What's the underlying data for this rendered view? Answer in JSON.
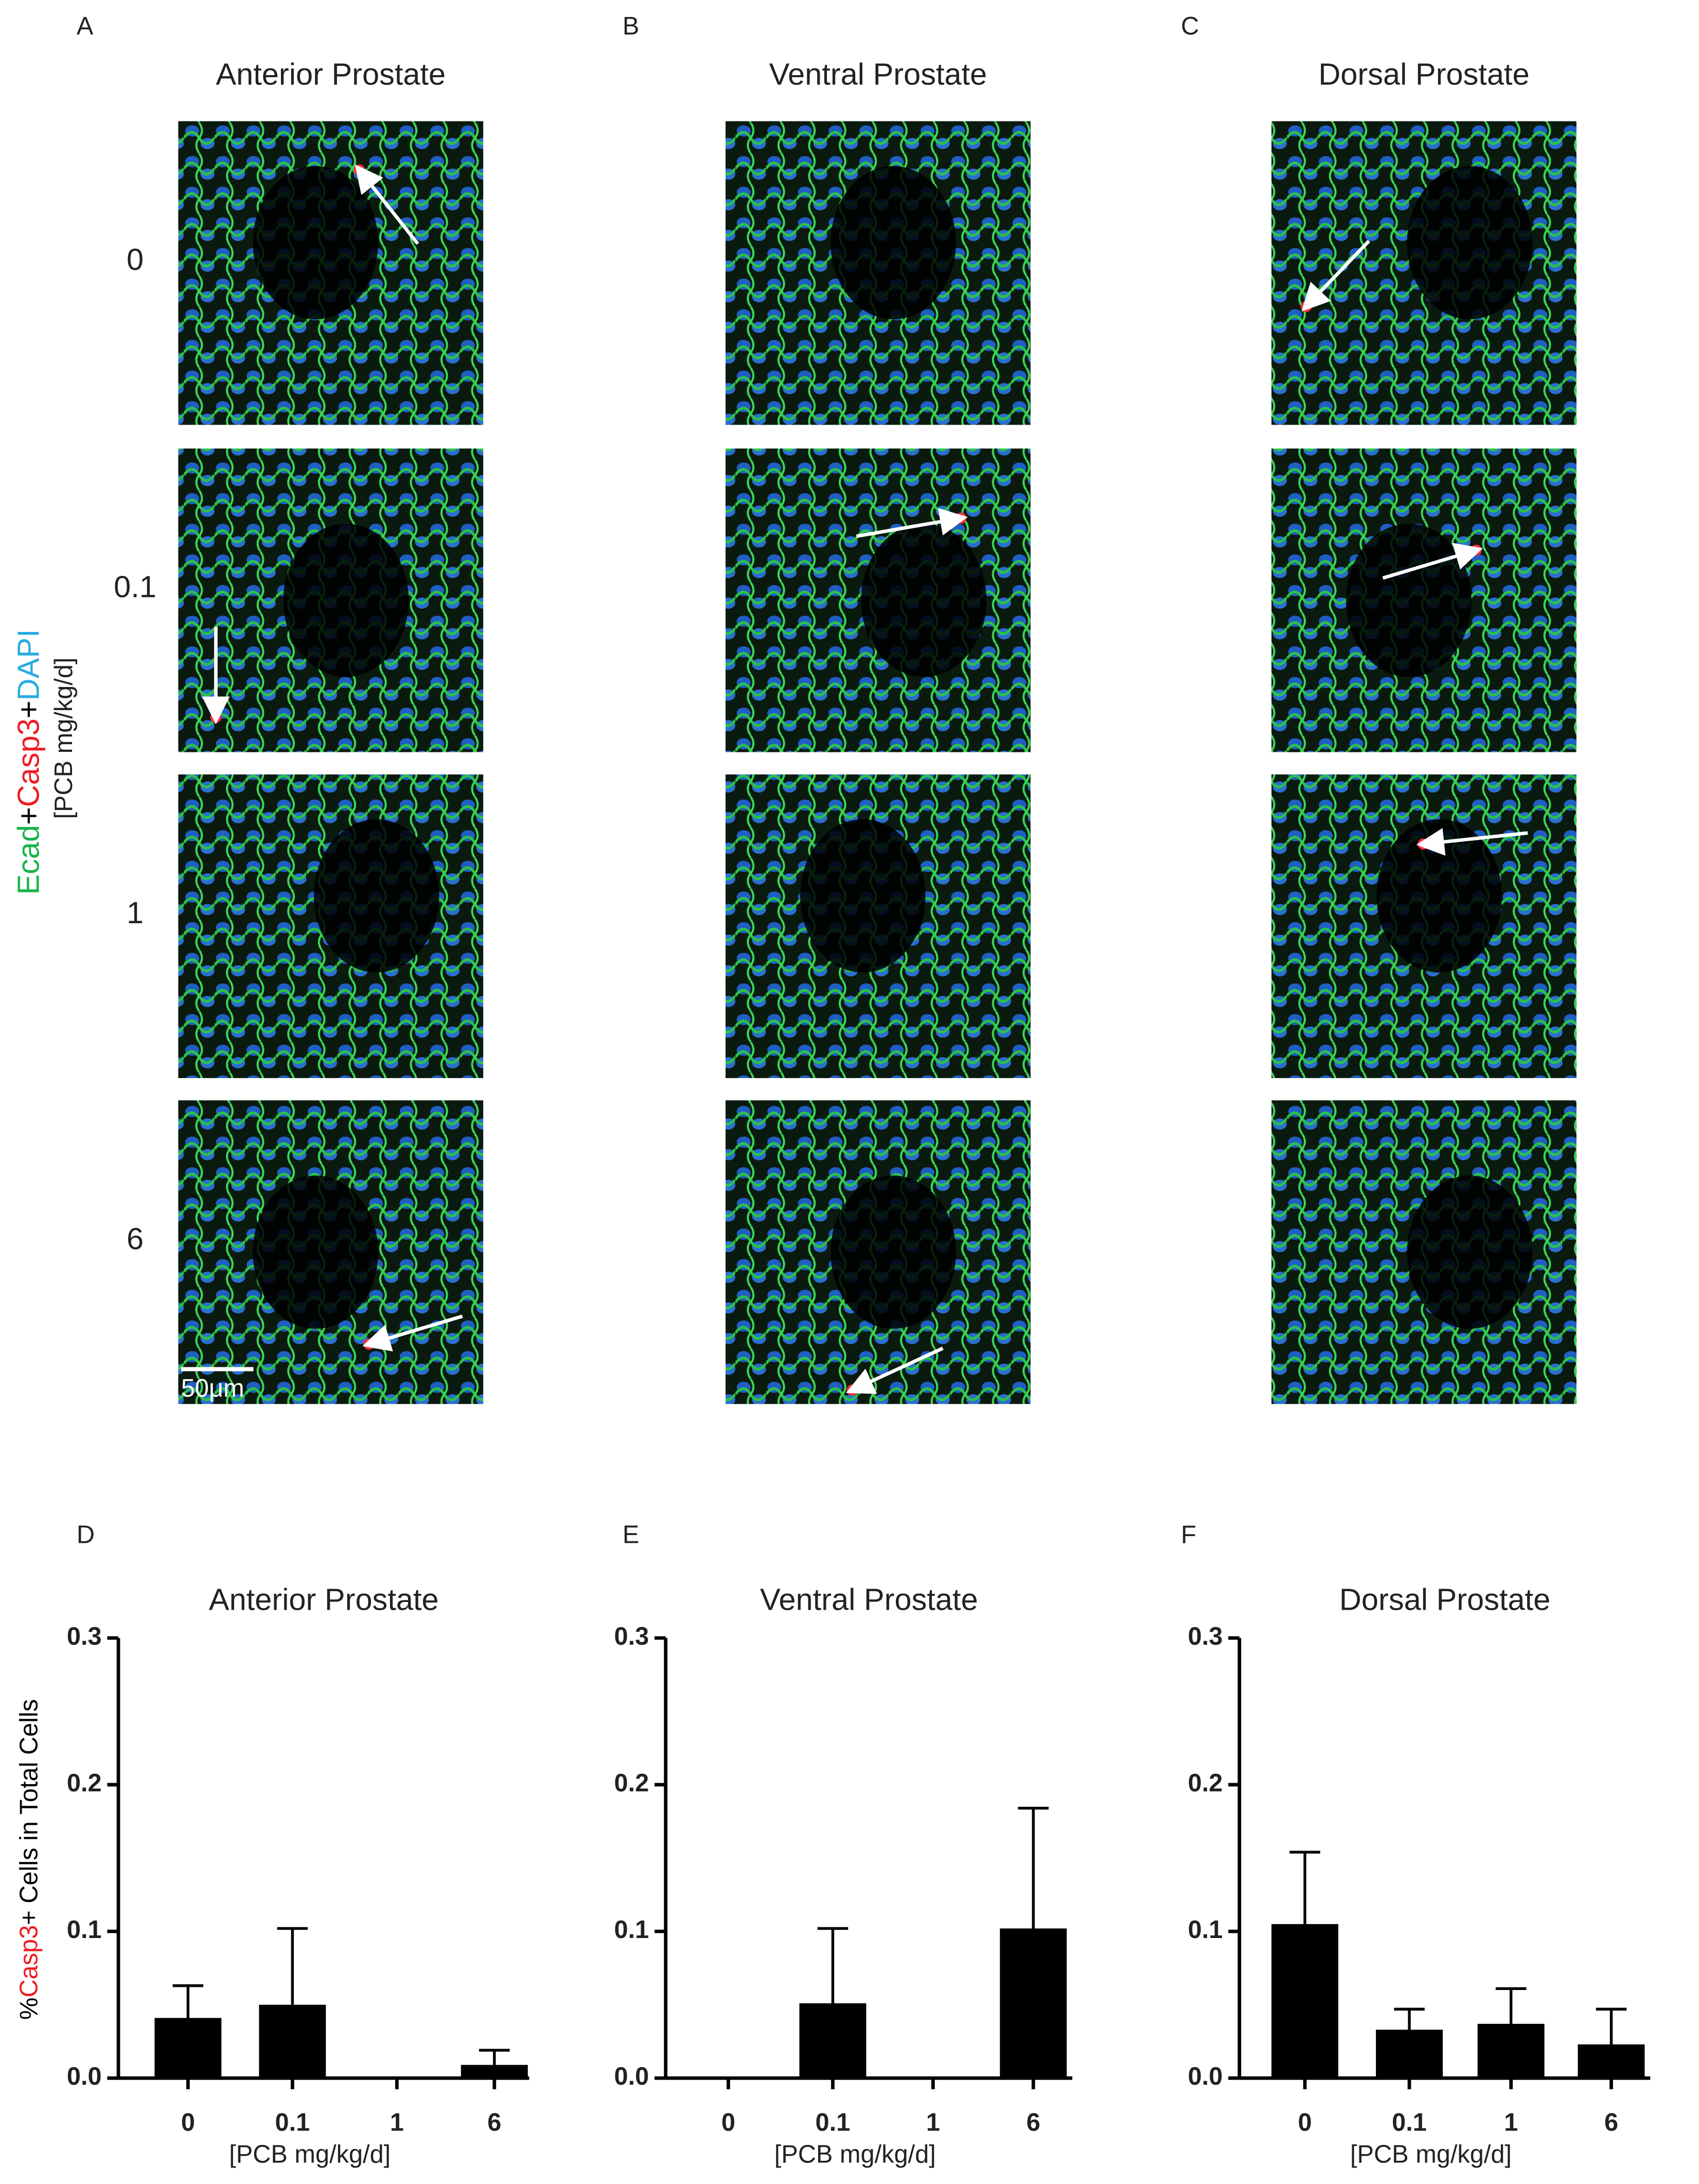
{
  "micrographs": {
    "panels": [
      "A",
      "B",
      "C"
    ],
    "titles": [
      "Anterior Prostate",
      "Ventral Prostate",
      "Dorsal Prostate"
    ],
    "doses": [
      "0",
      "0.1",
      "1",
      "6"
    ],
    "stain_label": [
      {
        "text": "Ecad",
        "color": "#19b34a"
      },
      {
        "text": "+",
        "color": "#000000"
      },
      {
        "text": "Casp3",
        "color": "#ee1c25"
      },
      {
        "text": "+",
        "color": "#000000"
      },
      {
        "text": "DAPI",
        "color": "#29abe2"
      }
    ],
    "dose_label": "[PCB mg/kg/d]",
    "scale_bar": "50μm"
  },
  "chart_data": [
    {
      "type": "bar",
      "panel": "D",
      "title": "Anterior Prostate",
      "ylabel": [
        {
          "text": "%",
          "color": "#000000"
        },
        {
          "text": "Casp3",
          "color": "#ee1c25"
        },
        {
          "text": "+ Cells in Total Cells",
          "color": "#000000"
        }
      ],
      "xlabel": "[PCB mg/kg/d]",
      "categories": [
        "0",
        "0.1",
        "1",
        "6"
      ],
      "values": [
        0.041,
        0.05,
        0,
        0.009
      ],
      "errors": [
        0.022,
        0.052,
        0,
        0.01
      ],
      "color": "#000000",
      "ylim": [
        0,
        0.3
      ],
      "yticks": [
        {
          "value": 0,
          "label": "0.0"
        },
        0.1,
        0.2,
        0.3
      ]
    },
    {
      "type": "bar",
      "panel": "E",
      "title": "Ventral Prostate",
      "xlabel": "[PCB mg/kg/d]",
      "categories": [
        "0",
        "0.1",
        "1",
        "6"
      ],
      "values": [
        0,
        0.051,
        0,
        0.102
      ],
      "errors": [
        0,
        0.051,
        0,
        0.082
      ],
      "color": "#000000",
      "ylim": [
        0,
        0.3
      ],
      "yticks": [
        {
          "value": 0,
          "label": "0.0"
        },
        0.1,
        0.2,
        0.3
      ]
    },
    {
      "type": "bar",
      "panel": "F",
      "title": "Dorsal Prostate",
      "xlabel": "[PCB mg/kg/d]",
      "categories": [
        "0",
        "0.1",
        "1",
        "6"
      ],
      "values": [
        0.105,
        0.033,
        0.037,
        0.023
      ],
      "errors": [
        0.049,
        0.014,
        0.024,
        0.024
      ],
      "color": "#000000",
      "ylim": [
        0,
        0.3
      ],
      "yticks": [
        {
          "value": 0,
          "label": "0.0"
        },
        0.1,
        0.2,
        0.3
      ]
    }
  ]
}
